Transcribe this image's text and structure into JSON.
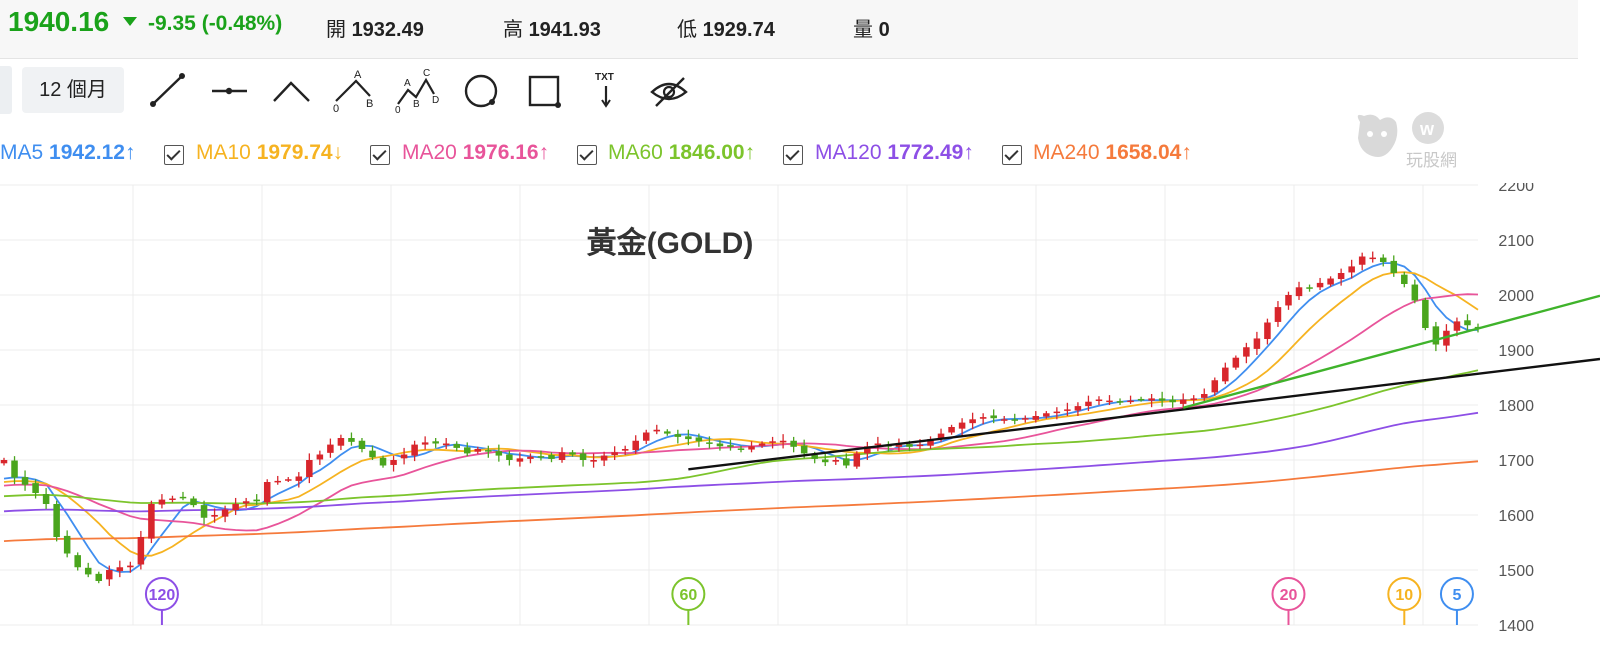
{
  "quote": {
    "price": "1940.16",
    "change": "-9.35 (-0.48%)",
    "open_label": "開",
    "open": "1932.49",
    "high_label": "高",
    "high": "1941.93",
    "low_label": "低",
    "low": "1929.74",
    "volume_label": "量",
    "volume": "0",
    "down_color": "#1aa21a"
  },
  "toolbar": {
    "period_label": "12 個月",
    "tools": [
      "line-tool-icon",
      "horizontal-line-icon",
      "angle-icon",
      "abcd-pattern-icon",
      "elliott-wave-icon",
      "circle-icon",
      "rectangle-icon",
      "text-tool-icon",
      "hide-drawings-icon"
    ],
    "abcd_letters": [
      "A",
      "B",
      "0"
    ],
    "wave_letters": [
      "C",
      "A",
      "B",
      "D",
      "0"
    ],
    "text_tool_label": "TXT"
  },
  "moving_averages": [
    {
      "name": "MA5",
      "value": "1942.12",
      "arrow": "↑",
      "color": "#3f8ef0",
      "checkbox": false
    },
    {
      "name": "MA10",
      "value": "1979.74",
      "arrow": "↓",
      "color": "#f6b321",
      "checkbox": true
    },
    {
      "name": "MA20",
      "value": "1976.16",
      "arrow": "↑",
      "color": "#e8549a",
      "checkbox": true
    },
    {
      "name": "MA60",
      "value": "1846.00",
      "arrow": "↑",
      "color": "#7cc42c",
      "checkbox": true
    },
    {
      "name": "MA120",
      "value": "1772.49",
      "arrow": "↑",
      "color": "#8d4fe6",
      "checkbox": true
    },
    {
      "name": "MA240",
      "value": "1658.04",
      "arrow": "↑",
      "color": "#f57a3c",
      "checkbox": true
    }
  ],
  "logo_text": "玩股網",
  "chart_data": {
    "type": "candlestick",
    "title": "黃金(GOLD)",
    "ylim": [
      1400,
      2200
    ],
    "yticks": [
      "2200",
      "2100",
      "2000",
      "1900",
      "1800",
      "1700",
      "1600",
      "1500",
      "1400"
    ],
    "grid": true,
    "up_color": "#d8262c",
    "down_color": "#4aa51d",
    "closes": [
      1700,
      1668,
      1655,
      1640,
      1620,
      1560,
      1530,
      1505,
      1492,
      1480,
      1500,
      1505,
      1508,
      1560,
      1620,
      1628,
      1630,
      1632,
      1618,
      1595,
      1600,
      1610,
      1620,
      1625,
      1625,
      1660,
      1662,
      1665,
      1670,
      1700,
      1710,
      1728,
      1740,
      1733,
      1720,
      1705,
      1690,
      1700,
      1710,
      1728,
      1732,
      1730,
      1730,
      1722,
      1712,
      1720,
      1716,
      1708,
      1700,
      1703,
      1706,
      1706,
      1702,
      1714,
      1710,
      1700,
      1700,
      1708,
      1714,
      1720,
      1735,
      1750,
      1755,
      1748,
      1742,
      1738,
      1734,
      1730,
      1725,
      1724,
      1720,
      1725,
      1730,
      1734,
      1735,
      1724,
      1712,
      1702,
      1696,
      1700,
      1690,
      1712,
      1725,
      1730,
      1725,
      1728,
      1724,
      1728,
      1738,
      1748,
      1760,
      1768,
      1774,
      1778,
      1776,
      1774,
      1772,
      1776,
      1780,
      1785,
      1788,
      1792,
      1798,
      1806,
      1810,
      1808,
      1806,
      1808,
      1810,
      1812,
      1808,
      1805,
      1810,
      1812,
      1820,
      1845,
      1868,
      1886,
      1905,
      1921,
      1950,
      1978,
      2000,
      2014,
      2012,
      2022,
      2030,
      2040,
      2052,
      2070,
      2068,
      2060,
      2040,
      2020,
      1990,
      1940,
      1910,
      1935,
      1952,
      1945,
      1940
    ],
    "ma_markers": [
      {
        "label": "120",
        "x_index": 15,
        "color": "#8d4fe6"
      },
      {
        "label": "60",
        "x_index": 65,
        "color": "#7cc42c"
      },
      {
        "label": "20",
        "x_index": 122,
        "color": "#e8549a"
      },
      {
        "label": "10",
        "x_index": 133,
        "color": "#f6b321"
      },
      {
        "label": "5",
        "x_index": 138,
        "color": "#3f8ef0"
      }
    ],
    "trendlines": [
      {
        "color": "#111111",
        "from": {
          "x_index": 65,
          "y": 1683
        },
        "to": {
          "x_index": 147,
          "y": 1873
        }
      },
      {
        "color": "#3fb32b",
        "from": {
          "x_index": 112,
          "y": 1795
        },
        "to": {
          "x_index": 147,
          "y": 1975
        }
      }
    ]
  }
}
